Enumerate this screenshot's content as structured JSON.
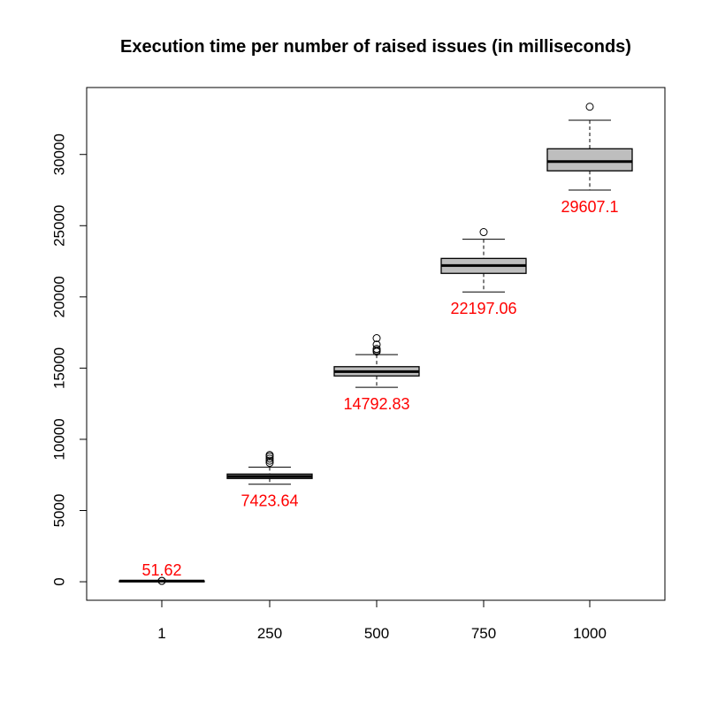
{
  "chart_data": {
    "type": "boxplot",
    "title": "Execution time per number of raised issues (in milliseconds)",
    "xlabel": "",
    "ylabel": "",
    "categories": [
      "1",
      "250",
      "500",
      "750",
      "1000"
    ],
    "ylim": [
      -1300,
      34700
    ],
    "yticks": [
      0,
      5000,
      10000,
      15000,
      20000,
      25000,
      30000
    ],
    "box_fill": "#bebebe",
    "label_color": "#ff0000",
    "boxes": [
      {
        "category": "1",
        "whisker_low": 40,
        "q1": 45,
        "median": 50,
        "q3": 58,
        "whisker_high": 65,
        "outliers": [
          60,
          62
        ],
        "mean_label": "51.62"
      },
      {
        "category": "250",
        "whisker_low": 6850,
        "q1": 7250,
        "median": 7400,
        "q3": 7560,
        "whisker_high": 8050,
        "outliers": [
          8350,
          8500,
          8650,
          8800,
          8900
        ],
        "mean_label": "7423.64"
      },
      {
        "category": "500",
        "whisker_low": 13650,
        "q1": 14450,
        "median": 14750,
        "q3": 15100,
        "whisker_high": 15950,
        "outliers": [
          16150,
          16250,
          16350,
          16650,
          17100
        ],
        "mean_label": "14792.83"
      },
      {
        "category": "750",
        "whisker_low": 20350,
        "q1": 21650,
        "median": 22200,
        "q3": 22700,
        "whisker_high": 24050,
        "outliers": [
          24550
        ],
        "mean_label": "22197.06"
      },
      {
        "category": "1000",
        "whisker_low": 27500,
        "q1": 28850,
        "median": 29500,
        "q3": 30400,
        "whisker_high": 32400,
        "outliers": [
          33350
        ],
        "mean_label": "29607.1"
      }
    ]
  }
}
